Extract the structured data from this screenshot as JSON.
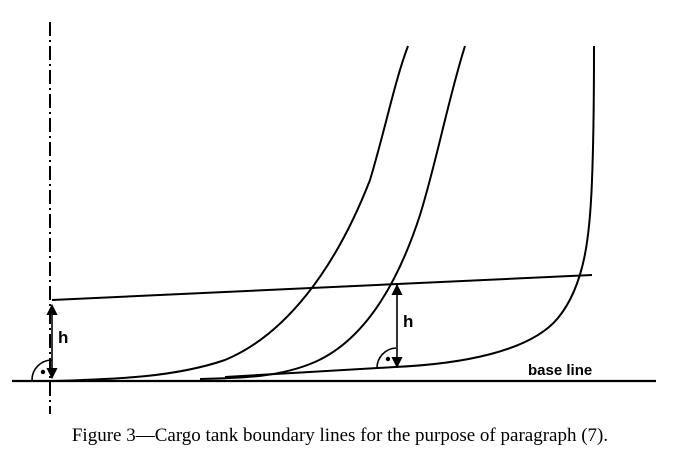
{
  "figure": {
    "caption": "Figure 3—Cargo tank boundary lines for the purpose of paragraph (7).",
    "labels": {
      "height_left": "h",
      "height_right": "h",
      "base_line": "base line"
    }
  }
}
